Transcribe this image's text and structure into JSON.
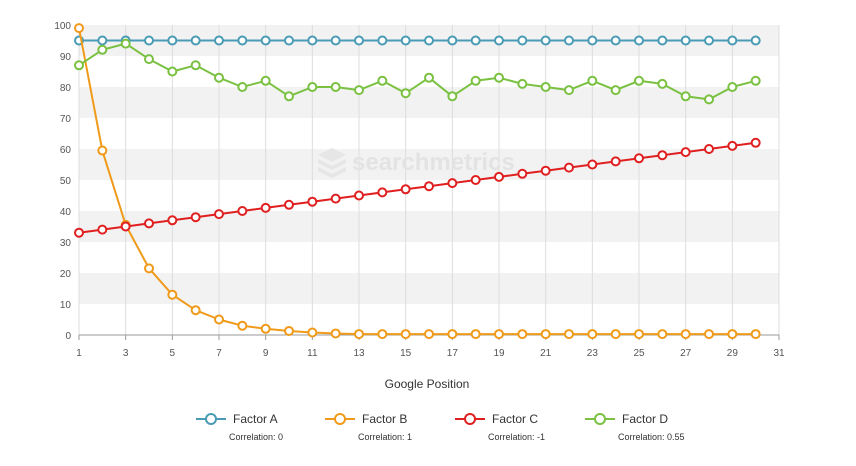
{
  "chart_data": {
    "type": "line",
    "title": "",
    "xlabel": "Google Position",
    "ylabel": "",
    "xlim": [
      1,
      31
    ],
    "ylim": [
      0,
      100
    ],
    "x_ticks": [
      1,
      3,
      5,
      7,
      9,
      11,
      13,
      15,
      17,
      19,
      21,
      23,
      25,
      27,
      29,
      31
    ],
    "y_ticks": [
      0,
      10,
      20,
      30,
      40,
      50,
      60,
      70,
      80,
      90,
      100
    ],
    "grid": "vertical lines with alternating horizontal bands",
    "legend_position": "bottom",
    "watermark": "searchmetrics",
    "x": [
      1,
      2,
      3,
      4,
      5,
      6,
      7,
      8,
      9,
      10,
      11,
      12,
      13,
      14,
      15,
      16,
      17,
      18,
      19,
      20,
      21,
      22,
      23,
      24,
      25,
      26,
      27,
      28,
      29,
      30
    ],
    "series": [
      {
        "name": "Factor A",
        "correlation": "Correlation: 0",
        "color": "#4a9bb5",
        "values": [
          95,
          95,
          95,
          95,
          95,
          95,
          95,
          95,
          95,
          95,
          95,
          95,
          95,
          95,
          95,
          95,
          95,
          95,
          95,
          95,
          95,
          95,
          95,
          95,
          95,
          95,
          95,
          95,
          95,
          95
        ]
      },
      {
        "name": "Factor B",
        "correlation": "Correlation: 1",
        "color": "#f09a1a",
        "values": [
          99,
          59.5,
          35.5,
          21.5,
          13,
          8,
          5,
          3,
          2,
          1.3,
          0.8,
          0.5,
          0.3,
          0.3,
          0.3,
          0.3,
          0.3,
          0.3,
          0.3,
          0.3,
          0.3,
          0.3,
          0.3,
          0.3,
          0.3,
          0.3,
          0.3,
          0.3,
          0.3,
          0.3
        ]
      },
      {
        "name": "Factor C",
        "correlation": "Correlation: -1",
        "color": "#e02020",
        "values": [
          33,
          34,
          35,
          36,
          37,
          38,
          39,
          40,
          41,
          42,
          43,
          44,
          45,
          46,
          47,
          48,
          49,
          50,
          51,
          52,
          53,
          54,
          55,
          56,
          57,
          58,
          59,
          60,
          61,
          62
        ]
      },
      {
        "name": "Factor D",
        "correlation": "Correlation: 0.55",
        "color": "#7ac142",
        "values": [
          87,
          92,
          94,
          89,
          85,
          87,
          83,
          80,
          82,
          77,
          80,
          80,
          79,
          82,
          78,
          83,
          77,
          82,
          83,
          81,
          80,
          79,
          82,
          79,
          82,
          81,
          77,
          76,
          80,
          82
        ]
      }
    ]
  }
}
